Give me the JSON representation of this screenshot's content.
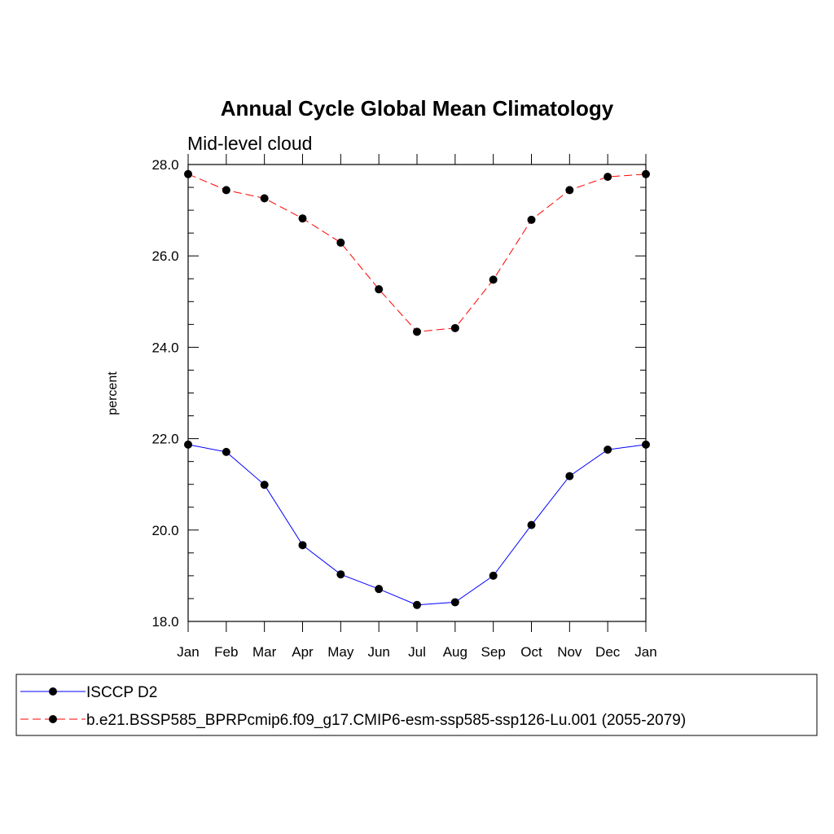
{
  "chart_data": {
    "type": "line",
    "title": "Annual Cycle Global Mean Climatology",
    "subtitle": "Mid-level cloud",
    "xlabel": "",
    "ylabel": "percent",
    "categories": [
      "Jan",
      "Feb",
      "Mar",
      "Apr",
      "May",
      "Jun",
      "Jul",
      "Aug",
      "Sep",
      "Oct",
      "Nov",
      "Dec",
      "Jan"
    ],
    "ylim": [
      18.0,
      28.0
    ],
    "yticks": [
      "18.0",
      "20.0",
      "22.0",
      "24.0",
      "26.0",
      "28.0"
    ],
    "series": [
      {
        "name": "ISCCP D2",
        "color": "#0000ff",
        "dash": "solid",
        "values": [
          21.87,
          21.71,
          20.99,
          19.67,
          19.03,
          18.71,
          18.36,
          18.42,
          19.0,
          20.11,
          21.18,
          21.76,
          21.87
        ]
      },
      {
        "name": "b.e21.BSSP585_BPRPcmip6.f09_g17.CMIP6-esm-ssp585-ssp126-Lu.001 (2055-2079)",
        "color": "#ff0000",
        "dash": "dashed",
        "values": [
          27.79,
          27.44,
          27.26,
          26.82,
          26.29,
          25.27,
          24.34,
          24.42,
          25.48,
          26.79,
          27.44,
          27.73,
          27.79
        ]
      }
    ],
    "legend_position": "bottom"
  }
}
